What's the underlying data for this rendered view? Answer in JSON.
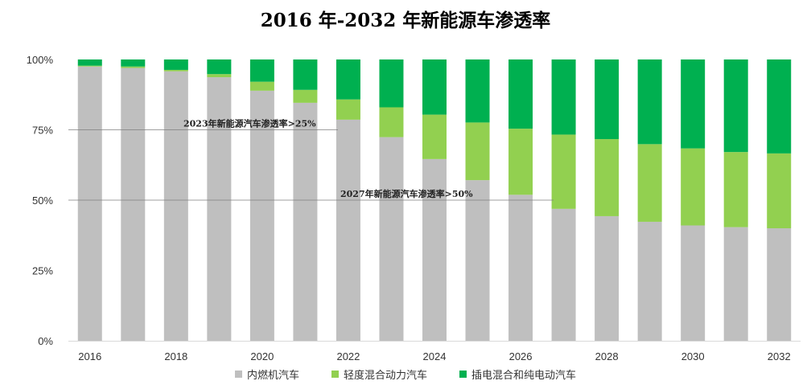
{
  "chart_data": {
    "type": "bar",
    "stacked": true,
    "title": "2016 年-2032 年新能源车渗透率",
    "categories": [
      "2016",
      "2017",
      "2018",
      "2019",
      "2020",
      "2021",
      "2022",
      "2023",
      "2024",
      "2025",
      "2026",
      "2027",
      "2028",
      "2029",
      "2030",
      "2031",
      "2032"
    ],
    "x_tick_labels": [
      "2016",
      "2018",
      "2020",
      "2022",
      "2024",
      "2026",
      "2028",
      "2030",
      "2032"
    ],
    "y_tick_labels": [
      "0%",
      "25%",
      "50%",
      "75%",
      "100%"
    ],
    "ylim": [
      0,
      100
    ],
    "grid": false,
    "legend_position": "bottom",
    "series": [
      {
        "name": "内燃机汽车",
        "color": "#bfbfbf",
        "values": [
          97.5,
          97,
          95.8,
          93.7,
          88.9,
          84.6,
          78.6,
          72.4,
          64.6,
          57.1,
          51.9,
          46.9,
          44.3,
          42.3,
          41,
          40.4,
          40
        ]
      },
      {
        "name": "轻度混合动力汽车",
        "color": "#92d050",
        "values": [
          0.3,
          0.5,
          0.5,
          1.1,
          3.2,
          4.6,
          7.2,
          10.6,
          15.8,
          20.5,
          23.5,
          26.4,
          27.4,
          27.6,
          27.4,
          26.7,
          26.6
        ]
      },
      {
        "name": "插电混合和纯电动汽车",
        "color": "#00b050",
        "values": [
          2.2,
          2.5,
          3.7,
          5.2,
          7.9,
          10.8,
          14.2,
          17,
          19.6,
          22.4,
          24.6,
          26.7,
          28.3,
          30.1,
          31.6,
          32.9,
          33.4
        ]
      }
    ],
    "annotations": [
      {
        "text": "2023年新能源汽车渗透率>25%",
        "y": 75
      },
      {
        "text": "2027年新能源汽车渗透率>50%",
        "y": 50
      }
    ]
  }
}
